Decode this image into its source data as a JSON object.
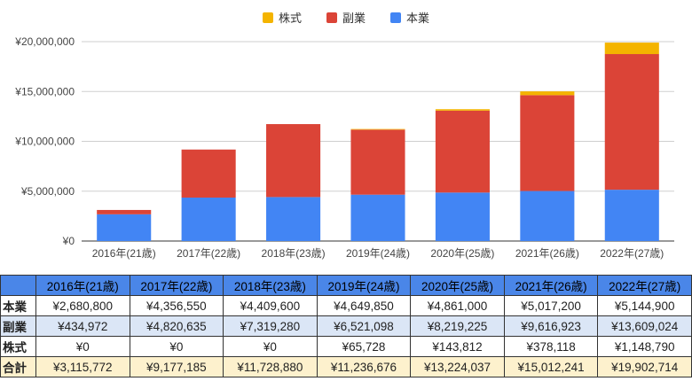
{
  "chart_data": {
    "type": "bar",
    "stacked": true,
    "categories": [
      "2016年(21歳)",
      "2017年(22歳)",
      "2018年(23歳)",
      "2019年(24歳)",
      "2020年(25歳)",
      "2021年(26歳)",
      "2022年(27歳)"
    ],
    "series": [
      {
        "name": "本業",
        "color": "#4285f4",
        "values": [
          2680800,
          4356550,
          4409600,
          4649850,
          4861000,
          5017200,
          5144900
        ]
      },
      {
        "name": "副業",
        "color": "#db4437",
        "values": [
          434972,
          4820635,
          7319280,
          6521098,
          8219225,
          9616923,
          13609024
        ]
      },
      {
        "name": "株式",
        "color": "#f4b400",
        "values": [
          0,
          0,
          0,
          65728,
          143812,
          378118,
          1148790
        ]
      }
    ],
    "ylim": [
      0,
      20000000
    ],
    "yticks": [
      0,
      5000000,
      10000000,
      15000000,
      20000000
    ],
    "ytick_labels": [
      "¥0",
      "¥5,000,000",
      "¥10,000,000",
      "¥15,000,000",
      "¥20,000,000"
    ],
    "legend_order": [
      "株式",
      "副業",
      "本業"
    ],
    "legend_position": "top-center",
    "grid": true
  },
  "table": {
    "headers": [
      "",
      "2016年(21歳)",
      "2017年(22歳)",
      "2018年(23歳)",
      "2019年(24歳)",
      "2020年(25歳)",
      "2021年(26歳)",
      "2022年(27歳)"
    ],
    "rows": [
      {
        "label": "本業",
        "cells": [
          "¥2,680,800",
          "¥4,356,550",
          "¥4,409,600",
          "¥4,649,850",
          "¥4,861,000",
          "¥5,017,200",
          "¥5,144,900"
        ]
      },
      {
        "label": "副業",
        "cells": [
          "¥434,972",
          "¥4,820,635",
          "¥7,319,280",
          "¥6,521,098",
          "¥8,219,225",
          "¥9,616,923",
          "¥13,609,024"
        ]
      },
      {
        "label": "株式",
        "cells": [
          "¥0",
          "¥0",
          "¥0",
          "¥65,728",
          "¥143,812",
          "¥378,118",
          "¥1,148,790"
        ]
      },
      {
        "label": "合計",
        "cells": [
          "¥3,115,772",
          "¥9,177,185",
          "¥11,728,880",
          "¥11,236,676",
          "¥13,224,037",
          "¥15,012,241",
          "¥19,902,714"
        ]
      }
    ]
  }
}
